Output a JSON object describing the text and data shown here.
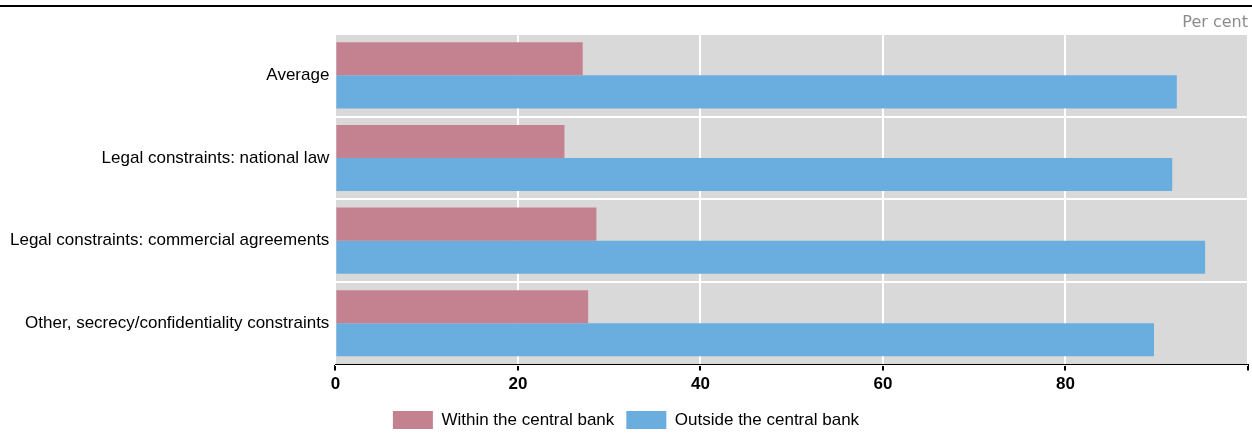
{
  "chart_data": {
    "type": "bar",
    "orientation": "horizontal",
    "categories": [
      "Average",
      "Legal constraints: national law",
      "Legal constraints: commercial agreements",
      "Other, secrecy/confidentiality constraints"
    ],
    "series": [
      {
        "name": "Within the central bank",
        "color": "#c48291",
        "values": [
          27.1,
          25.1,
          28.6,
          27.7
        ]
      },
      {
        "name": "Outside the central bank",
        "color": "#6aaee0",
        "values": [
          92.2,
          91.7,
          95.3,
          89.7
        ]
      }
    ],
    "xlim": [
      0,
      100
    ],
    "xticks": [
      0,
      20,
      40,
      60,
      80,
      {
        "value": 100,
        "label": null
      }
    ],
    "grid": true,
    "legend": "bottom",
    "annotations": [
      "Per cent"
    ]
  }
}
